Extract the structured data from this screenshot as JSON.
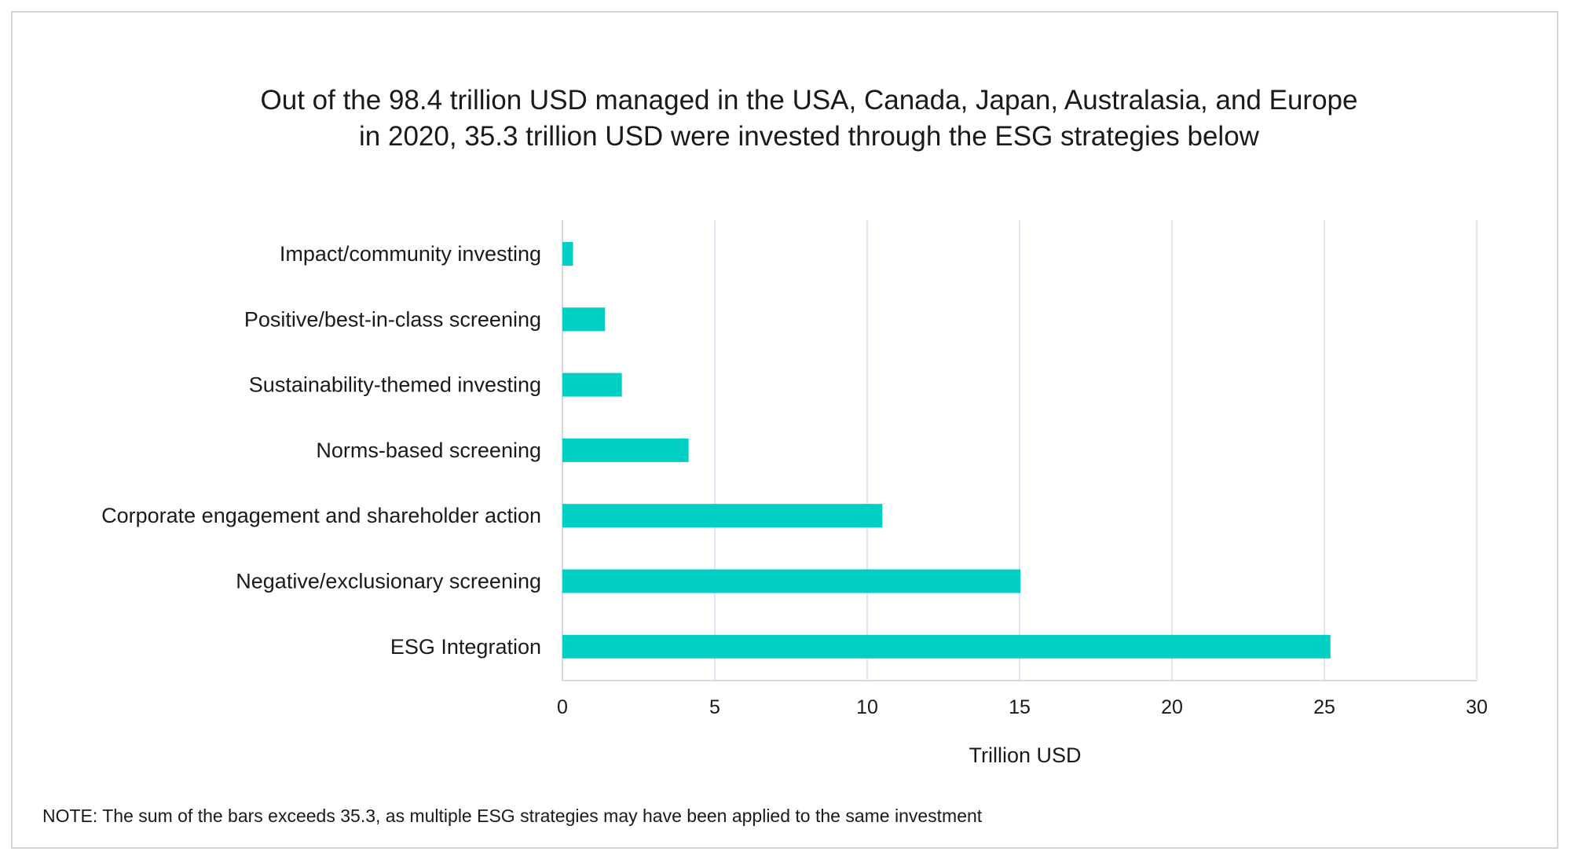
{
  "colors": {
    "bar": "#00d0c4",
    "grid": "#dce6f5",
    "axis": "#d9d9d9",
    "frame": "#d6d6d6"
  },
  "chart_data": {
    "type": "bar",
    "orientation": "horizontal",
    "title_lines": [
      "Out of the 98.4 trillion USD managed in the USA, Canada, Japan, Australasia, and Europe",
      "in 2020, 35.3 trillion USD were invested through the ESG strategies below"
    ],
    "categories": [
      "Impact/community investing",
      "Positive/best-in-class screening",
      "Sustainability-themed investing",
      "Norms-based screening",
      "Corporate engagement and shareholder action",
      "Negative/exclusionary screening",
      "ESG Integration"
    ],
    "values": [
      0.35,
      1.4,
      1.95,
      4.14,
      10.5,
      15.03,
      25.2
    ],
    "xlabel": "Trillion USD",
    "ylabel": "",
    "xlim": [
      0,
      30
    ],
    "xticks": [
      "0",
      "5",
      "10",
      "15",
      "20",
      "25",
      "30"
    ],
    "grid": "vertical",
    "note": "NOTE: The sum of the bars exceeds 35.3, as multiple ESG strategies may have been applied to the same investment"
  }
}
